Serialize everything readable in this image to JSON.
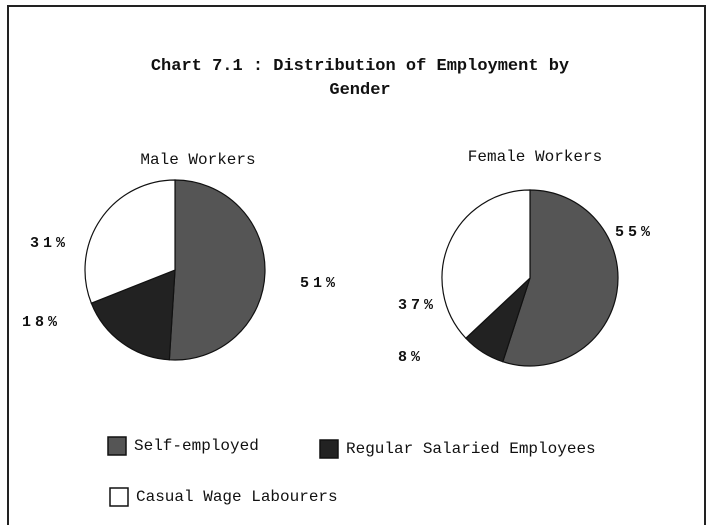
{
  "chart_data": [
    {
      "type": "pie",
      "title": "Chart 7.1 : Distribution of Employment by Gender",
      "subtitle": "Male Workers",
      "categories": [
        "Self-employed",
        "Regular Salaried Employees",
        "Casual Wage Labourers"
      ],
      "values": [
        51,
        18,
        31
      ],
      "value_labels": [
        "51%",
        "18%",
        "31%"
      ],
      "colors": [
        "#555555",
        "#222222",
        "#ffffff"
      ]
    },
    {
      "type": "pie",
      "subtitle": "Female Workers",
      "values": [
        55,
        8,
        37
      ],
      "value_labels": [
        "55%",
        "8%",
        "37%"
      ],
      "colors": [
        "#555555",
        "#222222",
        "#ffffff"
      ]
    }
  ]
}
